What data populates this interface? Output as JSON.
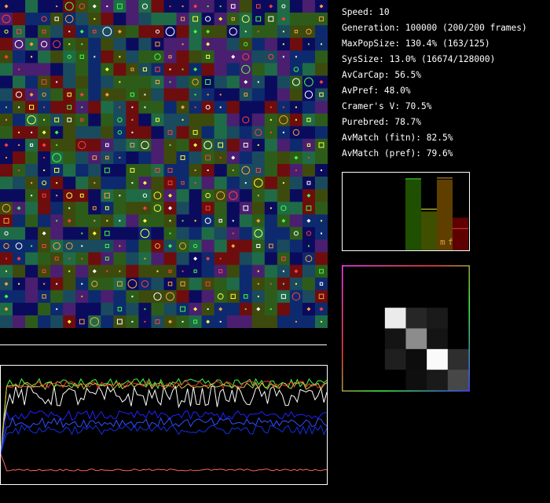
{
  "stats": {
    "speed": "Speed: 10",
    "generation": "Generation: 100000 (200/200 frames)",
    "max_pop_size": "MaxPopSize: 130.4% (163/125)",
    "sys_size": "SysSize: 13.0% (16674/128000)",
    "av_car_cap": "AvCarCap: 56.5%",
    "av_pref": "AvPref: 48.0%",
    "cramers_v": "Cramer's V: 70.5%",
    "purebred": "Purebred: 78.7%",
    "av_match_fitn": "AvMatch (fitn): 82.5%",
    "av_match_pref": "AvMatch (pref): 79.6%"
  },
  "bars": {
    "values": [
      0.925,
      0.5,
      0.91,
      0.42
    ],
    "colors": [
      "#1f4f00",
      "#3f4f00",
      "#5f3f00",
      "#5f0000"
    ],
    "marker_colors": [
      "#40e040",
      "#e8e840",
      "#e0a040",
      "#e04040"
    ],
    "marker_levels": [
      0.92,
      0.53,
      0.93,
      0.28
    ],
    "label_m": "m",
    "label_f": "f",
    "label_color": "#e0a040"
  },
  "matrix": {
    "size": 6,
    "cells": [
      [
        0,
        0,
        0,
        0,
        0,
        0
      ],
      [
        0,
        0,
        0,
        0,
        0,
        0
      ],
      [
        0,
        0,
        0.92,
        0.15,
        0.1,
        0
      ],
      [
        0,
        0,
        0.08,
        0.55,
        0.08,
        0
      ],
      [
        0,
        0,
        0.12,
        0.05,
        0.98,
        0.18
      ],
      [
        0,
        0,
        0,
        0.06,
        0.1,
        0.28
      ]
    ]
  },
  "grid": {
    "cols": 26,
    "rows": 26,
    "cell_colors": [
      "#0d2a6e",
      "#1f6b47",
      "#2d5c1a",
      "#4a1f70",
      "#6e0d0d",
      "#0b0b5e",
      "#3d4a0d",
      "#1a4a5e"
    ],
    "marker_colors": [
      "#ffff40",
      "#40ff40",
      "#ff4040",
      "#ffa040",
      "#ffffff"
    ]
  },
  "history": {
    "series": [
      {
        "color": "#ffffff",
        "level": 0.74,
        "jitter": 0.09
      },
      {
        "color": "#40ff40",
        "level": 0.85,
        "jitter": 0.04
      },
      {
        "color": "#ff3030",
        "level": 0.84,
        "jitter": 0.03
      },
      {
        "color": "#c8c840",
        "level": 0.83,
        "jitter": 0.03
      },
      {
        "color": "#2020ff",
        "level": 0.58,
        "jitter": 0.04
      },
      {
        "color": "#3050ff",
        "level": 0.52,
        "jitter": 0.04
      },
      {
        "color": "#1030e0",
        "level": 0.46,
        "jitter": 0.04
      },
      {
        "color": "#ff6060",
        "level": 0.12,
        "jitter": 0.008
      }
    ]
  }
}
